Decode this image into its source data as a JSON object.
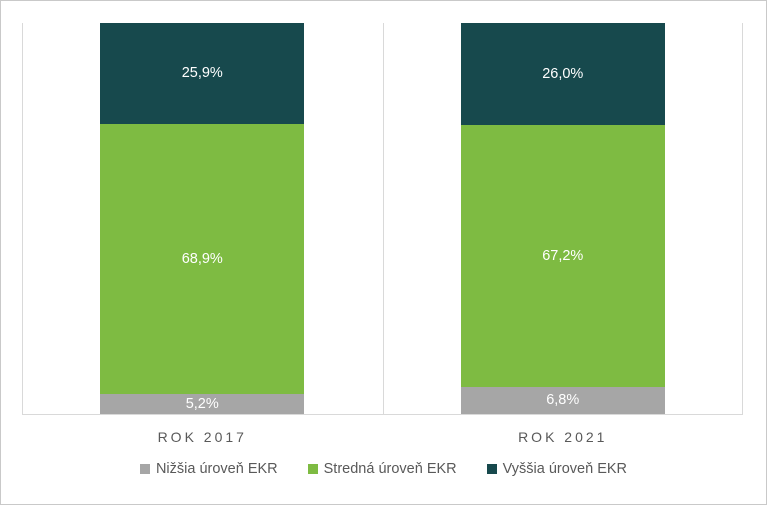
{
  "chart_data": {
    "type": "bar",
    "subtype": "stacked-100-percent",
    "title": "",
    "xlabel": "",
    "ylabel": "",
    "ylim": [
      0,
      100
    ],
    "grid": "vertical category separators, left/right plot borders, bottom axis line",
    "legend_position": "bottom",
    "categories": [
      "ROK 2017",
      "ROK 2021"
    ],
    "series": [
      {
        "name": "Nižšia úroveň EKR",
        "color": "#A6A6A6",
        "values": [
          5.2,
          6.8
        ],
        "labels": [
          "5,2%",
          "6,8%"
        ]
      },
      {
        "name": "Stredná úroveň EKR",
        "color": "#7EBB42",
        "values": [
          68.9,
          67.2
        ],
        "labels": [
          "68,9%",
          "67,2%"
        ]
      },
      {
        "name": "Vyššia úroveň EKR",
        "color": "#17494D",
        "values": [
          25.9,
          26.0
        ],
        "labels": [
          "25,9%",
          "26,0%"
        ]
      }
    ],
    "data_label_color": "#FFFFFF",
    "axis_text_color": "#595959",
    "gridline_color": "#D9D9D9"
  }
}
